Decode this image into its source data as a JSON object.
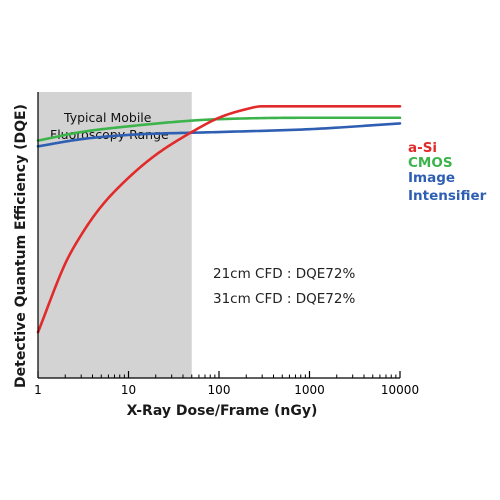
{
  "chart_data": {
    "type": "line",
    "xlabel": "X-Ray Dose/Frame (nGy)",
    "ylabel": "Detective Quantum Efficiency (DQE)",
    "x_scale": "log",
    "xlim": [
      1,
      10000
    ],
    "xticks": [
      {
        "value": 1,
        "label": "1"
      },
      {
        "value": 10,
        "label": "10"
      },
      {
        "value": 100,
        "label": "100"
      },
      {
        "value": 1000,
        "label": "1000"
      },
      {
        "value": 10000,
        "label": "10000"
      }
    ],
    "shaded_region": {
      "x_range": [
        1,
        50
      ],
      "label_lines": [
        "Typical Mobile",
        "Fluoroscopy Range"
      ],
      "color": "#d3d3d3"
    },
    "annotations": [
      "21cm CFD : DQE72%",
      "31cm CFD : DQE72%"
    ],
    "legend_position": "right",
    "series": [
      {
        "name": "a-Si",
        "label_lines": [
          "a-Si"
        ],
        "color": "#e12b2b",
        "points": [
          [
            1,
            0.16
          ],
          [
            2,
            0.4
          ],
          [
            3,
            0.5
          ],
          [
            5,
            0.6
          ],
          [
            10,
            0.7
          ],
          [
            20,
            0.78
          ],
          [
            50,
            0.86
          ],
          [
            100,
            0.91
          ],
          [
            200,
            0.94
          ],
          [
            300,
            0.95
          ],
          [
            1000,
            0.95
          ],
          [
            10000,
            0.95
          ]
        ]
      },
      {
        "name": "CMOS",
        "label_lines": [
          "CMOS"
        ],
        "color": "#3cb44b",
        "points": [
          [
            1,
            0.83
          ],
          [
            3,
            0.86
          ],
          [
            10,
            0.88
          ],
          [
            50,
            0.9
          ],
          [
            100,
            0.905
          ],
          [
            1000,
            0.91
          ],
          [
            10000,
            0.91
          ]
        ]
      },
      {
        "name": "Image Intensifier",
        "label_lines": [
          "Image",
          "Intensifier"
        ],
        "color": "#2f5fb3",
        "points": [
          [
            1,
            0.81
          ],
          [
            3,
            0.835
          ],
          [
            10,
            0.85
          ],
          [
            100,
            0.86
          ],
          [
            1000,
            0.87
          ],
          [
            10000,
            0.89
          ]
        ]
      }
    ]
  }
}
